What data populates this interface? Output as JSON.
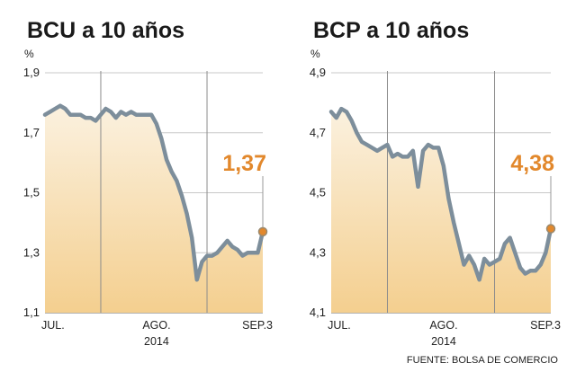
{
  "source": "FUENTE: BOLSA DE COMERCIO",
  "colors": {
    "line": "#7d8e9b",
    "area_top": "#fbeed7",
    "area_bottom": "#f4cf8f",
    "accent": "#e2882c",
    "grid": "#c8c8c8",
    "marker_line": "#9a9a9a"
  },
  "chart_data": [
    {
      "type": "area",
      "title": "BCU a 10 años",
      "unit": "%",
      "ylim": [
        1.1,
        1.9
      ],
      "yticks": [
        "1,9",
        "1,7",
        "1,5",
        "1,3",
        "1,1"
      ],
      "ytick_values": [
        1.9,
        1.7,
        1.5,
        1.3,
        1.1
      ],
      "xticks": [
        {
          "label": "JUL.",
          "sub": "",
          "x": 1.5
        },
        {
          "label": "AGO.",
          "sub": "2014",
          "x": 21
        },
        {
          "label": "SEP.3",
          "sub": "",
          "x": 40
        }
      ],
      "month_dividers": [
        10.5,
        30.5
      ],
      "x_end": 41,
      "callout": {
        "label": "1,37",
        "value": 1.37
      },
      "values": [
        1.76,
        1.77,
        1.78,
        1.79,
        1.78,
        1.76,
        1.76,
        1.76,
        1.75,
        1.75,
        1.74,
        1.76,
        1.78,
        1.77,
        1.75,
        1.77,
        1.76,
        1.77,
        1.76,
        1.76,
        1.76,
        1.76,
        1.73,
        1.68,
        1.61,
        1.57,
        1.54,
        1.49,
        1.43,
        1.35,
        1.21,
        1.27,
        1.29,
        1.29,
        1.3,
        1.32,
        1.34,
        1.32,
        1.31,
        1.29,
        1.3,
        1.3,
        1.3,
        1.37
      ]
    },
    {
      "type": "area",
      "title": "BCP a 10 años",
      "unit": "%",
      "ylim": [
        4.1,
        4.9
      ],
      "yticks": [
        "4,9",
        "4,7",
        "4,5",
        "4,3",
        "4,1"
      ],
      "ytick_values": [
        4.9,
        4.7,
        4.5,
        4.3,
        4.1
      ],
      "xticks": [
        {
          "label": "JUL.",
          "sub": "",
          "x": 1.5
        },
        {
          "label": "AGO.",
          "sub": "2014",
          "x": 21
        },
        {
          "label": "SEP.3",
          "sub": "",
          "x": 40
        }
      ],
      "month_dividers": [
        10.5,
        30.5
      ],
      "x_end": 41,
      "callout": {
        "label": "4,38",
        "value": 4.38
      },
      "values": [
        4.77,
        4.75,
        4.78,
        4.77,
        4.74,
        4.7,
        4.67,
        4.66,
        4.65,
        4.64,
        4.65,
        4.66,
        4.62,
        4.63,
        4.62,
        4.62,
        4.64,
        4.52,
        4.64,
        4.66,
        4.65,
        4.65,
        4.59,
        4.48,
        4.4,
        4.33,
        4.26,
        4.29,
        4.26,
        4.21,
        4.28,
        4.26,
        4.27,
        4.28,
        4.33,
        4.35,
        4.3,
        4.25,
        4.23,
        4.24,
        4.24,
        4.26,
        4.3,
        4.38
      ]
    }
  ]
}
